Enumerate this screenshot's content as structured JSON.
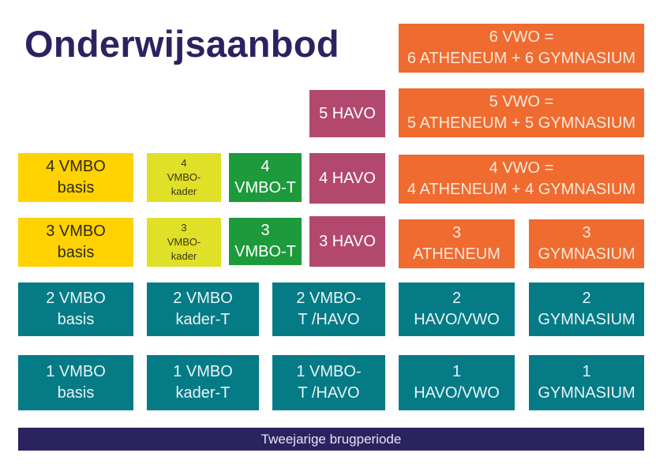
{
  "title": "Onderwijsaanbod",
  "bottom_bar": "Tweejarige brugperiode",
  "boxes": {
    "vwo6": [
      "6 VWO =",
      "6 ATHENEUM + 6 GYMNASIUM"
    ],
    "vwo5": [
      "5 VWO =",
      "5 ATHENEUM + 5 GYMNASIUM"
    ],
    "vwo4": [
      "4 VWO =",
      "4 ATHENEUM + 4 GYMNASIUM"
    ],
    "havo5": [
      "5 HAVO"
    ],
    "havo4": [
      "4 HAVO"
    ],
    "havo3": [
      "3 HAVO"
    ],
    "ath3": [
      "3",
      "ATHENEUM"
    ],
    "gym3": [
      "3",
      "GYMNASIUM"
    ],
    "vb4": [
      "4 VMBO",
      "basis"
    ],
    "vk4": [
      "4",
      "VMBO-",
      "kader"
    ],
    "vt4": [
      "4",
      "VMBO-T"
    ],
    "vb3": [
      "3 VMBO",
      "basis"
    ],
    "vk3": [
      "3",
      "VMBO-",
      "kader"
    ],
    "vt3": [
      "3",
      "VMBO-T"
    ],
    "r2a": [
      "2 VMBO",
      "basis"
    ],
    "r2b": [
      "2 VMBO",
      "kader-T"
    ],
    "r2c": [
      "2 VMBO-",
      "T /HAVO"
    ],
    "r2d": [
      "2",
      "HAVO/VWO"
    ],
    "r2e": [
      "2",
      "GYMNASIUM"
    ],
    "r1a": [
      "1 VMBO",
      "basis"
    ],
    "r1b": [
      "1 VMBO",
      "kader-T"
    ],
    "r1c": [
      "1 VMBO-",
      "T /HAVO"
    ],
    "r1d": [
      "1",
      "HAVO/VWO"
    ],
    "r1e": [
      "1",
      "GYMNASIUM"
    ]
  },
  "colors": {
    "title": "#2b2360",
    "vwo": "#ef6b2f",
    "havo": "#b3486e",
    "vmbo_basis": "#ffd200",
    "vmbo_kader": "#dfe027",
    "vmbo_t": "#1d9a3b",
    "onderbouw": "#057b86",
    "brugperiode": "#2b2360"
  }
}
